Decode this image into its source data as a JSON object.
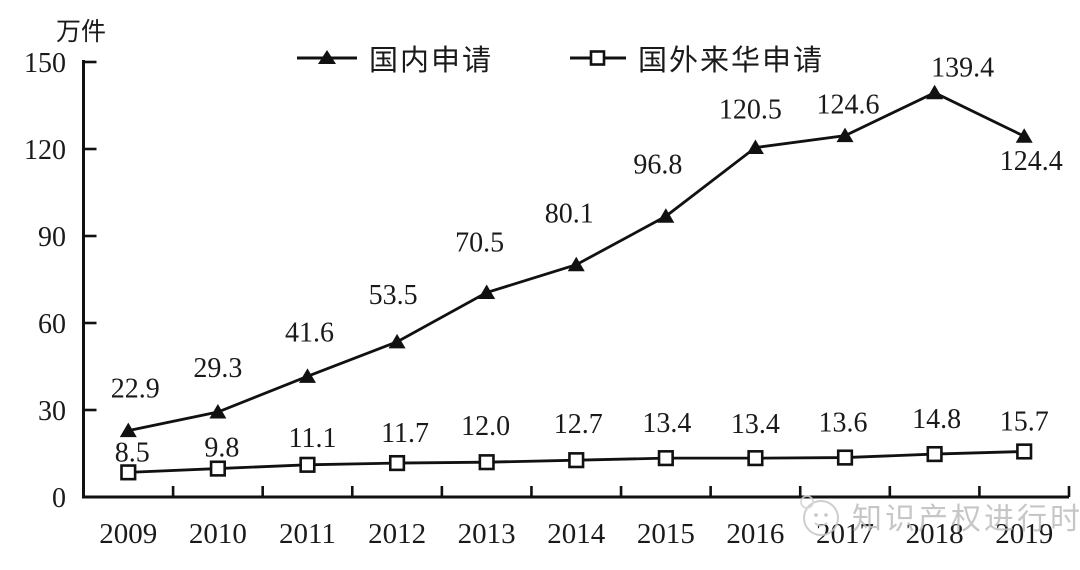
{
  "watermark": {
    "text": "知识产权进行时"
  },
  "chart_data": {
    "type": "line",
    "title": "",
    "unit_label": "万件",
    "categories": [
      "2009",
      "2010",
      "2011",
      "2012",
      "2013",
      "2014",
      "2015",
      "2016",
      "2017",
      "2018",
      "2019"
    ],
    "series": [
      {
        "name": "国内申请",
        "marker": "triangle-filled",
        "values": [
          22.9,
          29.3,
          41.6,
          53.5,
          70.5,
          80.1,
          96.8,
          120.5,
          124.6,
          139.4,
          124.4
        ],
        "labels": [
          "22.9",
          "29.3",
          "41.6",
          "53.5",
          "70.5",
          "80.1",
          "96.8",
          "120.5",
          "124.6",
          "139.4",
          "124.4"
        ],
        "label_offsets": [
          [
            7,
            -43
          ],
          [
            0,
            -45
          ],
          [
            2,
            -45
          ],
          [
            -4,
            -48
          ],
          [
            -7,
            -51
          ],
          [
            -7,
            -52
          ],
          [
            -8,
            -53
          ],
          [
            -5,
            -39
          ],
          [
            3,
            -32
          ],
          [
            28,
            -26
          ],
          [
            7,
            24
          ]
        ]
      },
      {
        "name": "国外来华申请",
        "marker": "square-open",
        "values": [
          8.5,
          9.8,
          11.1,
          11.7,
          12.0,
          12.7,
          13.4,
          13.4,
          13.6,
          14.8,
          15.7
        ],
        "labels": [
          "8.5",
          "9.8",
          "11.1",
          "11.7",
          "12.0",
          "12.7",
          "13.4",
          "13.4",
          "13.6",
          "14.8",
          "15.7"
        ],
        "label_offsets": [
          [
            4,
            -21
          ],
          [
            4,
            -22
          ],
          [
            5,
            -28
          ],
          [
            8,
            -31
          ],
          [
            -1,
            -37
          ],
          [
            2,
            -37
          ],
          [
            1,
            -36
          ],
          [
            0,
            -35
          ],
          [
            -2,
            -36
          ],
          [
            2,
            -36
          ],
          [
            0,
            -31
          ]
        ]
      }
    ],
    "xlabel": "",
    "ylabel": "万件",
    "ylim": [
      0,
      150
    ],
    "yticks": [
      0,
      30,
      60,
      90,
      120,
      150
    ],
    "grid": false,
    "legend_position": "top",
    "line_color": "#111111",
    "text_color": "#1a1a1a"
  }
}
